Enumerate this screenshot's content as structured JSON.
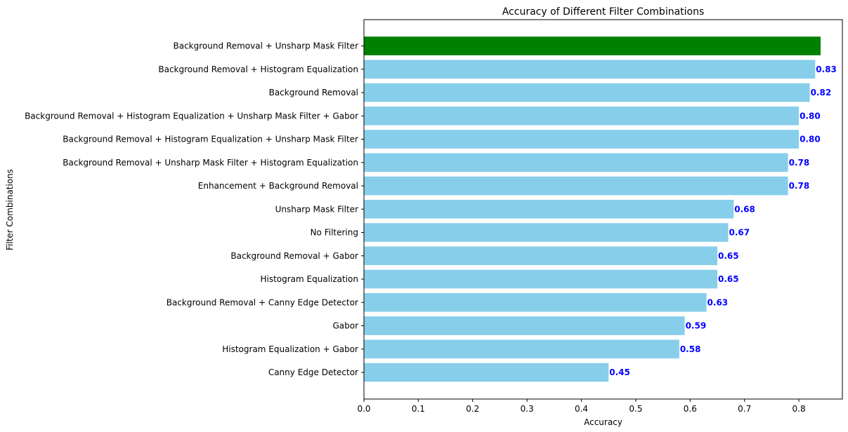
{
  "chart_data": {
    "type": "bar",
    "orientation": "horizontal",
    "title": "Accuracy of Different Filter Combinations",
    "xlabel": "Accuracy",
    "ylabel": "Filter Combinations",
    "xlim": [
      0,
      0.88
    ],
    "x_ticks": [
      "0.0",
      "0.1",
      "0.2",
      "0.3",
      "0.4",
      "0.5",
      "0.6",
      "0.7",
      "0.8"
    ],
    "grid": false,
    "categories": [
      "Background Removal + Unsharp Mask Filter",
      "Background Removal + Histogram Equalization",
      "Background Removal",
      "Background Removal + Histogram Equalization + Unsharp Mask Filter + Gabor",
      "Background Removal + Histogram Equalization + Unsharp Mask Filter",
      "Background Removal + Unsharp Mask Filter + Histogram Equalization",
      "Enhancement + Background Removal",
      "Unsharp Mask Filter",
      "No Filtering",
      "Background Removal + Gabor",
      "Histogram Equalization",
      "Background Removal + Canny Edge Detector",
      "Gabor",
      "Histogram Equalization + Gabor",
      "Canny Edge Detector"
    ],
    "values": [
      0.84,
      0.83,
      0.82,
      0.8,
      0.8,
      0.78,
      0.78,
      0.68,
      0.67,
      0.65,
      0.65,
      0.63,
      0.59,
      0.58,
      0.45
    ],
    "value_labels": [
      "",
      "0.83",
      "0.82",
      "0.80",
      "0.80",
      "0.78",
      "0.78",
      "0.68",
      "0.67",
      "0.65",
      "0.65",
      "0.63",
      "0.59",
      "0.58",
      "0.45"
    ],
    "highlight_index": 0,
    "colors": {
      "highlight": "#008000",
      "bar": "#87CEEB",
      "value_label": "#0000FF"
    }
  }
}
